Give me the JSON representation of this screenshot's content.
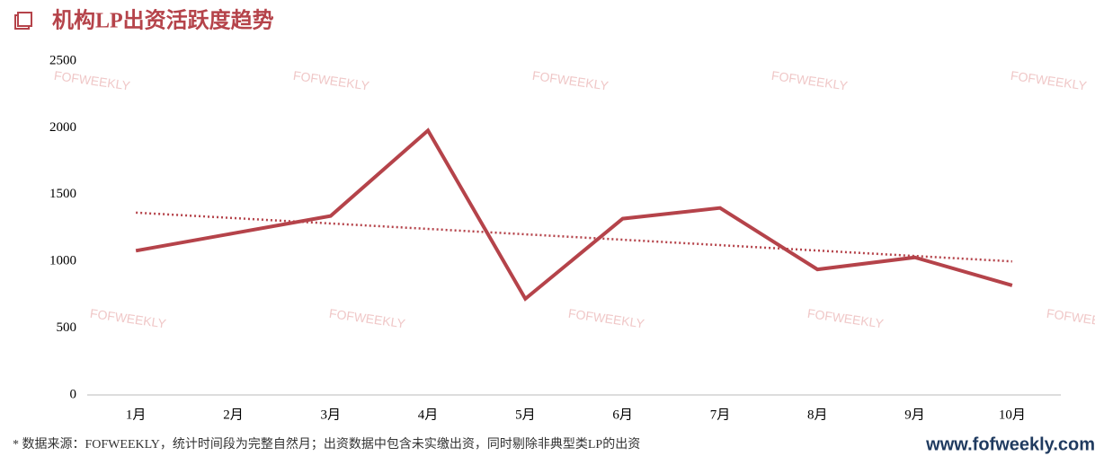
{
  "chart_data": {
    "type": "line",
    "title": "机构LP出资活跃度趋势",
    "categories": [
      "1月",
      "2月",
      "3月",
      "4月",
      "5月",
      "6月",
      "7月",
      "8月",
      "9月",
      "10月"
    ],
    "series": [
      {
        "color": "#b5434a",
        "values": [
          1080,
          1210,
          1340,
          1980,
          720,
          1320,
          1400,
          940,
          1030,
          820
        ]
      }
    ],
    "trendline": {
      "color": "#b5434a",
      "values": [
        1365,
        1000
      ]
    },
    "ylim": [
      0,
      2500
    ],
    "yticks": [
      0,
      500,
      1000,
      1500,
      2000,
      2500
    ],
    "grid": false,
    "watermark": "FOFWEEKLY",
    "footnote": "*  数据来源：FOFWEEKLY，统计时间段为完整自然月；出资数据中包含未实缴出资，同时剔除非典型类LP的出资",
    "website": "www.fofweekly.com"
  }
}
